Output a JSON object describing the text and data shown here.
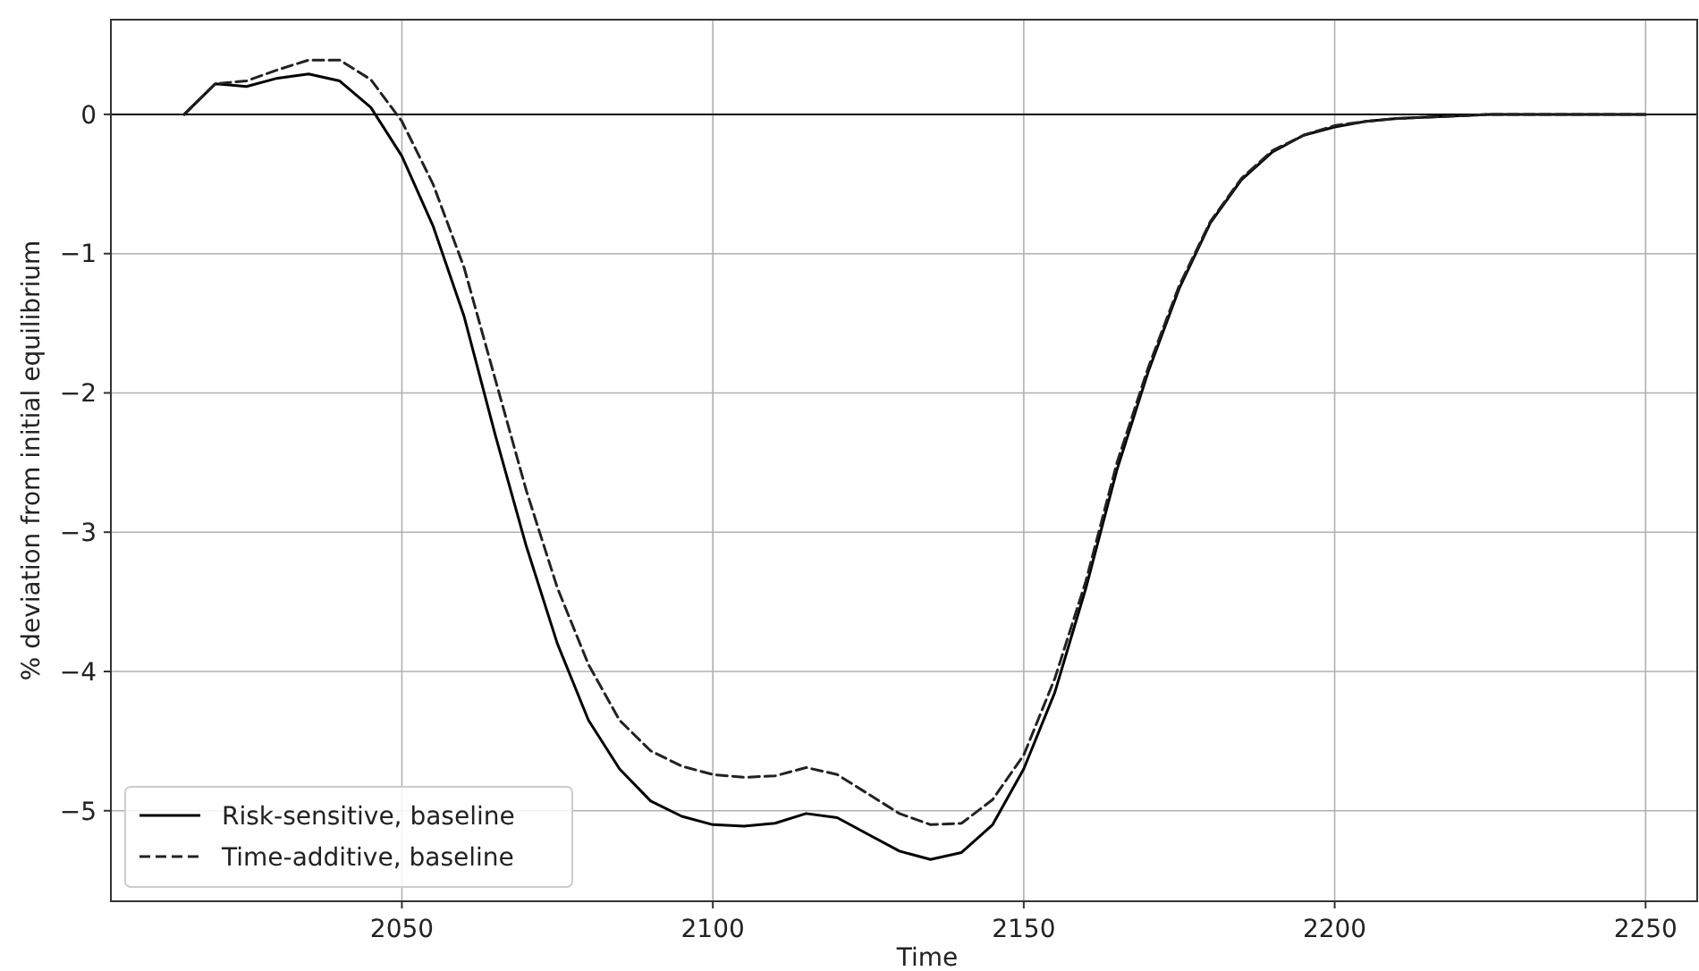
{
  "chart_data": {
    "type": "line",
    "xlabel": "Time",
    "ylabel": "% deviation from initial equilibrium",
    "x": [
      2015,
      2020,
      2025,
      2030,
      2035,
      2040,
      2045,
      2050,
      2055,
      2060,
      2065,
      2070,
      2075,
      2080,
      2085,
      2090,
      2095,
      2100,
      2105,
      2110,
      2115,
      2120,
      2125,
      2130,
      2135,
      2140,
      2145,
      2150,
      2155,
      2160,
      2165,
      2170,
      2175,
      2180,
      2185,
      2190,
      2195,
      2200,
      2205,
      2210,
      2215,
      2220,
      2225,
      2230,
      2235,
      2240,
      2245,
      2250
    ],
    "series": [
      {
        "name": "Risk-sensitive, baseline",
        "color": "#000000",
        "line_style": "solid",
        "values": [
          0,
          0.22,
          0.2,
          0.26,
          0.29,
          0.24,
          0.05,
          -0.3,
          -0.8,
          -1.45,
          -2.3,
          -3.1,
          -3.8,
          -4.35,
          -4.7,
          -4.93,
          -5.04,
          -5.1,
          -5.11,
          -5.09,
          -5.02,
          -5.05,
          -5.17,
          -5.29,
          -5.35,
          -5.3,
          -5.1,
          -4.7,
          -4.15,
          -3.4,
          -2.55,
          -1.85,
          -1.25,
          -0.78,
          -0.47,
          -0.27,
          -0.15,
          -0.09,
          -0.05,
          -0.03,
          -0.02,
          -0.01,
          0,
          0,
          0,
          0,
          0,
          0
        ]
      },
      {
        "name": "Time-additive, baseline",
        "color": "#222222",
        "line_style": "dashed",
        "values": [
          0,
          0.22,
          0.24,
          0.32,
          0.39,
          0.39,
          0.25,
          -0.05,
          -0.5,
          -1.1,
          -1.9,
          -2.7,
          -3.4,
          -3.95,
          -4.35,
          -4.57,
          -4.68,
          -4.74,
          -4.76,
          -4.75,
          -4.69,
          -4.74,
          -4.88,
          -5.02,
          -5.1,
          -5.09,
          -4.92,
          -4.6,
          -4.05,
          -3.35,
          -2.5,
          -1.82,
          -1.23,
          -0.77,
          -0.46,
          -0.26,
          -0.15,
          -0.08,
          -0.05,
          -0.03,
          -0.02,
          -0.01,
          0,
          0,
          0,
          0,
          0,
          0
        ]
      }
    ],
    "xlim": [
      2003.2,
      2258.3
    ],
    "xticks": [
      2050,
      2100,
      2150,
      2200,
      2250
    ],
    "ylim": [
      -5.65,
      0.68
    ],
    "yticks": [
      {
        "value": 0,
        "label": "0"
      },
      {
        "value": -1,
        "label": "−1"
      },
      {
        "value": -2,
        "label": "−2"
      },
      {
        "value": -3,
        "label": "−3"
      },
      {
        "value": -4,
        "label": "−4"
      },
      {
        "value": -5,
        "label": "−5"
      }
    ],
    "ref_lines": [
      {
        "axis": "y",
        "value": 0,
        "color": "#000000"
      }
    ],
    "grid": true,
    "legend": "bottom left"
  }
}
